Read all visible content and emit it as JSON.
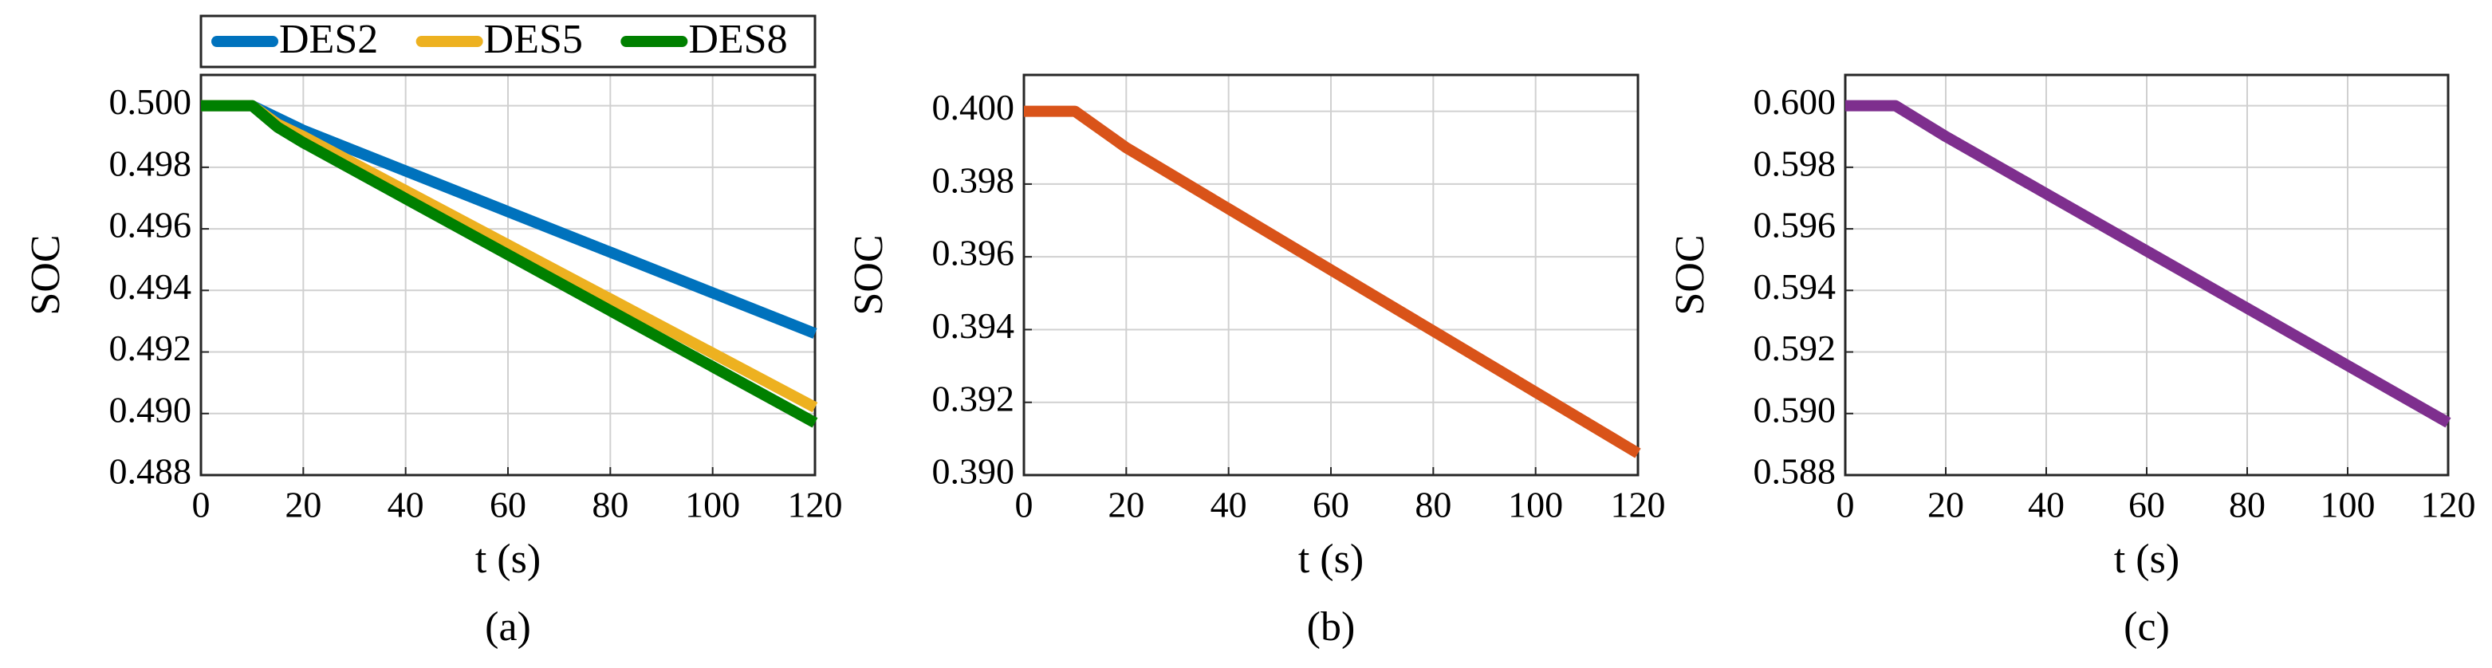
{
  "chart_data": [
    {
      "type": "line",
      "caption": "(a)",
      "x_label": "t (s)",
      "y_label": "SOC",
      "grid": true,
      "legend": "top",
      "x": [
        0,
        10,
        15,
        20,
        40,
        60,
        80,
        100,
        120
      ],
      "xlim": [
        0,
        120
      ],
      "xticks": [
        0,
        20,
        40,
        60,
        80,
        100,
        120
      ],
      "ylim": [
        0.488,
        0.501
      ],
      "yticks": [
        0.488,
        {
          "value": 0.49,
          "label": "0.490"
        },
        0.492,
        0.494,
        0.496,
        0.498,
        {
          "value": 0.5,
          "label": "0.500"
        }
      ],
      "series": [
        {
          "name": "DES2",
          "color": "#0072bd",
          "values": [
            0.5,
            0.5,
            0.4996,
            0.4992,
            0.49788,
            0.49656,
            0.49524,
            0.49392,
            0.4926
          ]
        },
        {
          "name": "DES5",
          "color": "#edb120",
          "values": [
            0.5,
            0.5,
            0.4994,
            0.499,
            0.49724,
            0.49548,
            0.49372,
            0.49196,
            0.4902
          ]
        },
        {
          "name": "DES8",
          "color": "#008000",
          "values": [
            0.5,
            0.5,
            0.4993,
            0.4988,
            0.49698,
            0.49516,
            0.49334,
            0.49152,
            0.4897
          ]
        }
      ]
    },
    {
      "type": "line",
      "caption": "(b)",
      "x_label": "t (s)",
      "y_label": "SOC",
      "grid": true,
      "x": [
        0,
        10,
        15,
        20,
        40,
        60,
        80,
        100,
        120
      ],
      "xlim": [
        0,
        120
      ],
      "xticks": [
        0,
        20,
        40,
        60,
        80,
        100,
        120
      ],
      "ylim": [
        0.39,
        0.401
      ],
      "yticks": [
        {
          "value": 0.39,
          "label": "0.390"
        },
        0.392,
        0.394,
        0.396,
        0.398,
        {
          "value": 0.4,
          "label": "0.400"
        }
      ],
      "series": [
        {
          "color": "#d95319",
          "values": [
            0.4,
            0.4,
            0.3995,
            0.399,
            0.39732,
            0.39564,
            0.39396,
            0.39228,
            0.3906
          ]
        }
      ]
    },
    {
      "type": "line",
      "caption": "(c)",
      "x_label": "t (s)",
      "y_label": "SOC",
      "grid": true,
      "x": [
        0,
        10,
        15,
        20,
        40,
        60,
        80,
        100,
        120
      ],
      "xlim": [
        0,
        120
      ],
      "xticks": [
        0,
        20,
        40,
        60,
        80,
        100,
        120
      ],
      "ylim": [
        0.588,
        0.601
      ],
      "yticks": [
        0.588,
        {
          "value": 0.59,
          "label": "0.590"
        },
        0.592,
        0.594,
        0.596,
        0.598,
        {
          "value": 0.6,
          "label": "0.600"
        }
      ],
      "series": [
        {
          "color": "#7e2f8e",
          "values": [
            0.6,
            0.6,
            0.5995,
            0.599,
            0.59714,
            0.59528,
            0.59342,
            0.59156,
            0.5897
          ]
        }
      ]
    }
  ]
}
